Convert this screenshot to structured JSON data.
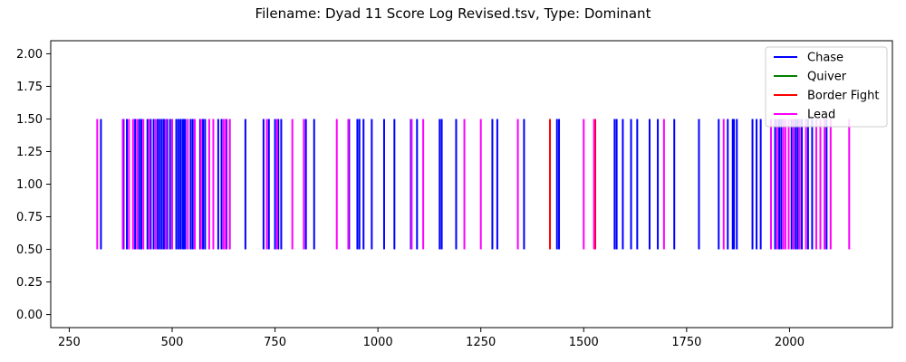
{
  "chart_data": {
    "type": "event",
    "title": "Filename: Dyad 11 Score Log Revised.tsv, Type: Dominant",
    "xlabel": "",
    "ylabel": "",
    "xlim": [
      205,
      2250
    ],
    "ylim": [
      -0.1,
      2.1
    ],
    "xticks": [
      250,
      500,
      750,
      1000,
      1250,
      1500,
      1750,
      2000
    ],
    "xtick_labels": [
      "250",
      "500",
      "750",
      "1000",
      "1250",
      "1500",
      "1750",
      "2000"
    ],
    "yticks": [
      0.0,
      0.25,
      0.5,
      0.75,
      1.0,
      1.25,
      1.5,
      1.75,
      2.0
    ],
    "ytick_labels": [
      "0.00",
      "0.25",
      "0.50",
      "0.75",
      "1.00",
      "1.25",
      "1.50",
      "1.75",
      "2.00"
    ],
    "line_y_range": [
      0.5,
      1.5
    ],
    "legend_position": "top-right",
    "series": [
      {
        "name": "Chase",
        "color": "#0000ff",
        "x": [
          327,
          382,
          390,
          410,
          420,
          425,
          440,
          448,
          455,
          465,
          470,
          475,
          480,
          485,
          488,
          495,
          510,
          515,
          520,
          525,
          528,
          532,
          545,
          550,
          568,
          575,
          580,
          612,
          620,
          632,
          640,
          678,
          722,
          735,
          750,
          758,
          765,
          825,
          845,
          930,
          950,
          955,
          965,
          985,
          1015,
          1040,
          1080,
          1095,
          1150,
          1155,
          1190,
          1278,
          1290,
          1355,
          1435,
          1440,
          1575,
          1580,
          1595,
          1615,
          1630,
          1660,
          1680,
          1720,
          1780,
          1828,
          1850,
          1862,
          1865,
          1872,
          1910,
          1920,
          1930,
          1965,
          1975,
          1980,
          2005,
          2015,
          2020,
          2030,
          2045,
          2055,
          2090
        ]
      },
      {
        "name": "Quiver",
        "color": "#008000",
        "x": []
      },
      {
        "name": "Border Fight",
        "color": "#ff0000",
        "x": [
          1418,
          1528
        ]
      },
      {
        "name": "Lead",
        "color": "#ff00ff",
        "x": [
          318,
          380,
          395,
          405,
          415,
          430,
          445,
          460,
          485,
          500,
          538,
          555,
          570,
          590,
          600,
          625,
          630,
          640,
          730,
          755,
          792,
          820,
          900,
          928,
          1082,
          1110,
          1210,
          1250,
          1340,
          1500,
          1525,
          1695,
          1840,
          1955,
          1970,
          1985,
          1990,
          1998,
          2010,
          2025,
          2040,
          2065,
          2075,
          2085,
          2100,
          2145
        ]
      }
    ]
  }
}
